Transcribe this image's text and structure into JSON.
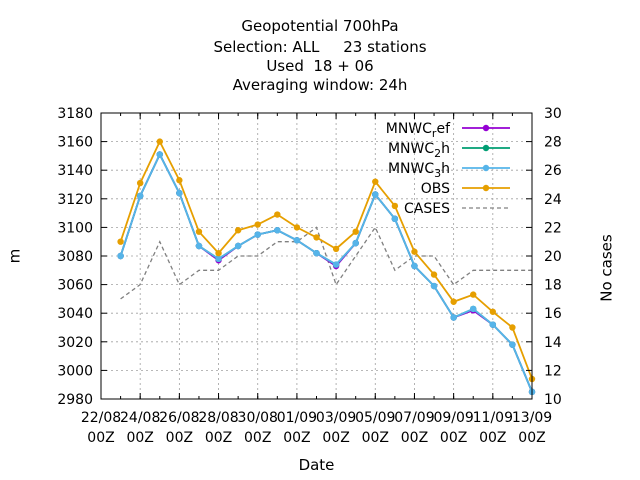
{
  "title_lines": [
    "Geopotential 700hPa",
    "Selection: ALL     23 stations",
    "Used  18 + 06",
    "Averaging window: 24h"
  ],
  "chart_data": {
    "type": "line",
    "xlabel": "Date",
    "ylabel": "m",
    "y2label": "No cases",
    "ylim": [
      2980,
      3180
    ],
    "y2lim": [
      10,
      30
    ],
    "yticks": [
      2980,
      3000,
      3020,
      3040,
      3060,
      3080,
      3100,
      3120,
      3140,
      3160,
      3180
    ],
    "y2ticks": [
      10,
      12,
      14,
      16,
      18,
      20,
      22,
      24,
      26,
      28,
      30
    ],
    "xlim": [
      0,
      22
    ],
    "xticks": [
      {
        "x": 0,
        "top": "22/08",
        "bottom": "00Z"
      },
      {
        "x": 2,
        "top": "24/08",
        "bottom": "00Z"
      },
      {
        "x": 4,
        "top": "26/08",
        "bottom": "00Z"
      },
      {
        "x": 6,
        "top": "28/08",
        "bottom": "00Z"
      },
      {
        "x": 8,
        "top": "30/08",
        "bottom": "00Z"
      },
      {
        "x": 10,
        "top": "01/09",
        "bottom": "00Z"
      },
      {
        "x": 12,
        "top": "03/09",
        "bottom": "00Z"
      },
      {
        "x": 14,
        "top": "05/09",
        "bottom": "00Z"
      },
      {
        "x": 16,
        "top": "07/09",
        "bottom": "00Z"
      },
      {
        "x": 18,
        "top": "09/09",
        "bottom": "00Z"
      },
      {
        "x": 20,
        "top": "11/09",
        "bottom": "00Z"
      },
      {
        "x": 22,
        "top": "13/09",
        "bottom": "00Z"
      }
    ],
    "grid": true,
    "legend_position": "top-right",
    "x": [
      1,
      2,
      3,
      4,
      5,
      6,
      7,
      8,
      9,
      10,
      11,
      12,
      13,
      14,
      15,
      16,
      17,
      18,
      19,
      20,
      21,
      22
    ],
    "series": [
      {
        "name_main": "MNWC",
        "name_sub": "r",
        "name_tail": "ef",
        "color": "#9400d3",
        "axis": "y",
        "values": [
          3080,
          3122,
          3151,
          3124,
          3087,
          3077,
          3087,
          3095,
          3098,
          3091,
          3082,
          3073,
          3089,
          3123,
          3106,
          3073,
          3059,
          3037,
          3042,
          3032,
          3018,
          2985
        ]
      },
      {
        "name_main": "MNWC",
        "name_sub": "2",
        "name_tail": "h",
        "color": "#009e73",
        "axis": "y",
        "values": [
          3080,
          3122,
          3151,
          3124,
          3087,
          3078,
          3087,
          3095,
          3098,
          3091,
          3082,
          3074,
          3089,
          3123,
          3106,
          3073,
          3059,
          3037,
          3043,
          3032,
          3018,
          2985
        ]
      },
      {
        "name_main": "MNWC",
        "name_sub": "3",
        "name_tail": "h",
        "color": "#56b4e9",
        "axis": "y",
        "values": [
          3080,
          3122,
          3151,
          3124,
          3087,
          3078,
          3087,
          3095,
          3098,
          3091,
          3082,
          3074,
          3089,
          3123,
          3106,
          3073,
          3059,
          3037,
          3043,
          3032,
          3018,
          2985
        ]
      },
      {
        "name": "OBS",
        "color": "#e69f00",
        "axis": "y",
        "values": [
          3090,
          3131,
          3160,
          3133,
          3097,
          3082,
          3098,
          3102,
          3109,
          3100,
          3093,
          3085,
          3097,
          3132,
          3115,
          3083,
          3067,
          3048,
          3053,
          3041,
          3030,
          2994
        ]
      },
      {
        "name": "CASES",
        "color": "#808080",
        "axis": "y2",
        "dashed": true,
        "values": [
          17,
          18,
          21,
          18,
          19,
          19,
          20,
          20,
          21,
          21,
          22,
          18,
          20,
          22,
          19,
          20,
          20,
          18,
          19,
          19,
          19,
          19
        ]
      }
    ]
  }
}
